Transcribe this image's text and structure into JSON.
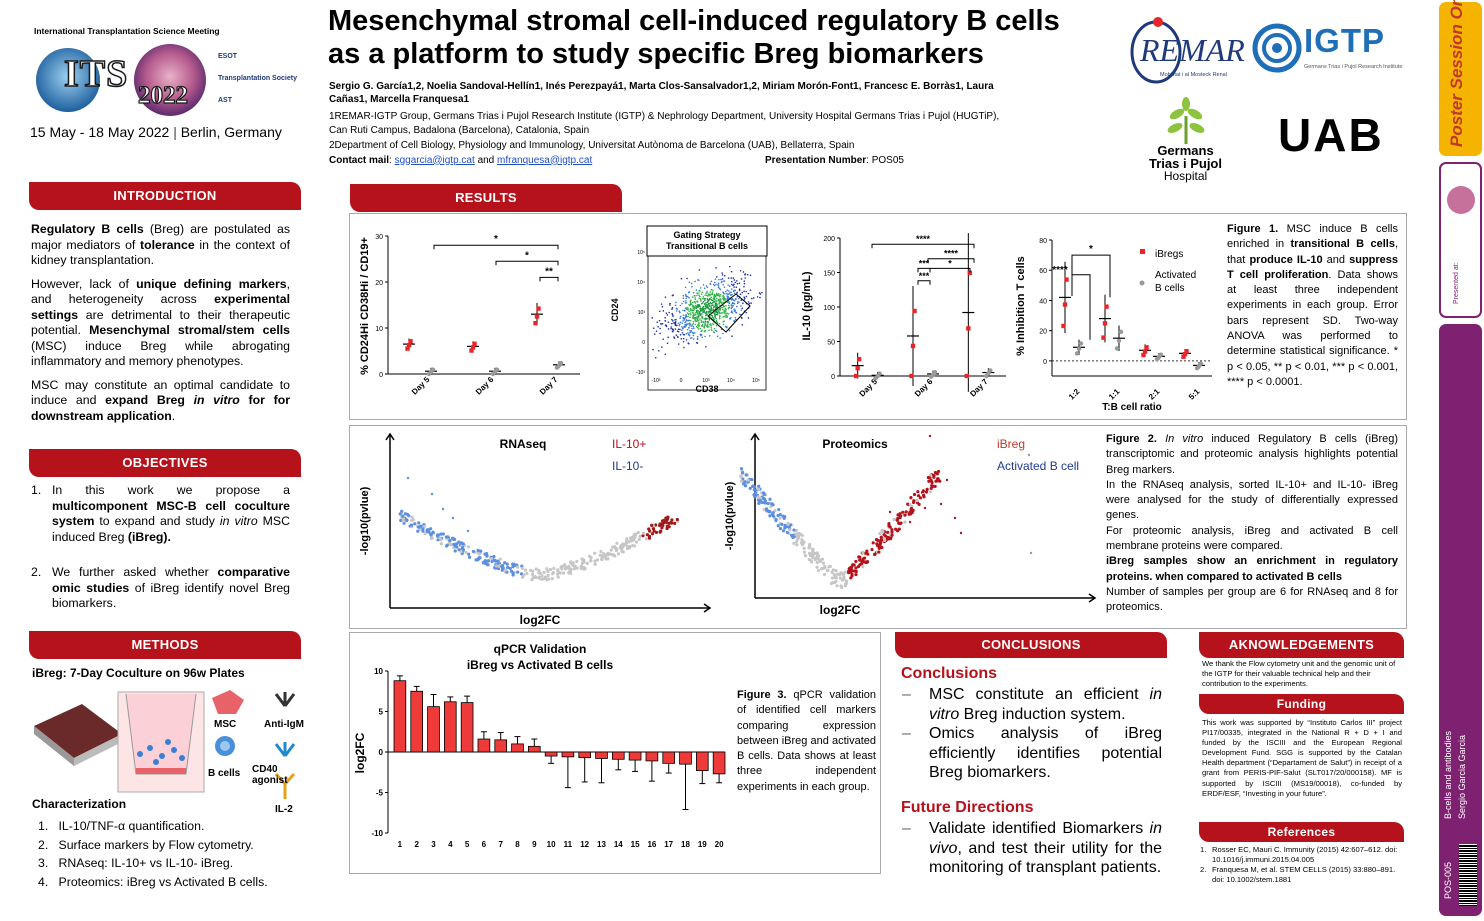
{
  "meeting": {
    "name": "International Transplantation Science Meeting",
    "logo_text": "ITS",
    "logo_year": "2022",
    "partners": [
      "ESOT",
      "Transplantation Society",
      "AST"
    ],
    "dates": "15 May - 18 May 2022",
    "location": "Berlin, Germany"
  },
  "poster": {
    "title_line1": "Mesenchymal stromal cell-induced regulatory B cells",
    "title_line2": "as a platform to study specific Breg biomarkers",
    "authors_line1": "Sergio G. García1,2, Noelia Sandoval-Hellín1, Inés Perezpayá1, Marta Clos-Sansalvador1,2, Miriam Morón-Font1, Francesc E. Borràs1, Laura",
    "authors_line2": "Cañas1, Marcella Franquesa1",
    "affil1_line1": "1REMAR-IGTP Group, Germans Trias i Pujol Research Institute (IGTP) & Nephrology Department, University Hospital Germans Trias i Pujol (HUGTiP),",
    "affil1_line2": "Can Ruti Campus, Badalona (Barcelona), Catalonia, Spain",
    "affil2": "2Department of Cell Biology, Physiology and Immunology, Universitat Autònoma de Barcelona (UAB), Bellaterra, Spain",
    "contact_label": "Contact mail",
    "contact_email1": "sggarcia@igtp.cat",
    "contact_and": "and",
    "contact_email2": "mfranquesa@igtp.cat",
    "presentation_label": "Presentation Number",
    "presentation_number": "POS05"
  },
  "logos": {
    "remar": "REMAR",
    "remar_sub": "Mobilitat i al Mosteck Renal",
    "igtp": "IGTP",
    "igtp_sub": "Germans Trias i Pujol Research Institute",
    "germans_line1": "Germans",
    "germans_line2": "Trias i Pujol",
    "germans_line3": "Hospital",
    "uab": "UAB"
  },
  "side": {
    "poster_session": "Poster Session Online",
    "presented_at": "Presented at:",
    "topic": "B-cells and antibodies",
    "author": "Sergio Garcia Garcia",
    "code": "POS-005"
  },
  "intro": {
    "heading": "INTRODUCTION",
    "p1a": "Regulatory B cells",
    "p1b": " (Breg) are postulated as major mediators of ",
    "p1c": "tolerance",
    "p1d": " in the context of kidney transplantation.",
    "p2a": "However, lack of ",
    "p2b": "unique defining markers",
    "p2c": ", and heterogeneity across ",
    "p2d": "experimental settings",
    "p2e": " are detrimental to their therapeutic potential. ",
    "p2f": "Mesenchymal stromal/stem cells",
    "p2g": " (MSC) induce Breg while abrogating inflammatory and memory phenotypes.",
    "p3a": "MSC may constitute an optimal candidate to induce and ",
    "p3b": "expand Breg ",
    "p3c": "in vitro",
    "p3d": " for downstream application",
    "p3e": "."
  },
  "objectives": {
    "heading": "OBJECTIVES",
    "o1a": "In this work we propose a ",
    "o1b": "multicomponent MSC-B cell coculture system",
    "o1c": " to expand and study ",
    "o1d": "in vitro",
    "o1e": " MSC induced Breg ",
    "o1f": "(iBreg).",
    "o2a": "We further asked whether ",
    "o2b": "comparative omic studies",
    "o2c": " of iBreg identify novel Breg biomarkers."
  },
  "methods": {
    "heading": "METHODS",
    "subtitle": "iBreg: 7-Day Coculture on 96w Plates",
    "msc": "MSC",
    "bcells": "B cells",
    "anti_igm": "Anti-IgM",
    "cd40": "CD40 agonist",
    "il2": "IL-2",
    "char_title": "Characterization",
    "items": [
      "IL-10/TNF-α quantification.",
      "Surface markers by Flow cytometry.",
      "RNAseq: IL-10+ vs IL-10- iBreg.",
      "Proteomics: iBreg vs Activated B cells."
    ]
  },
  "results": {
    "heading": "RESULTS",
    "fig1_caption": {
      "label": "Figure 1.",
      "t1": " MSC induce B cells enriched in ",
      "b1": "transitional B cells",
      "t2": ", that ",
      "b2": "produce IL-10",
      "t3": " and ",
      "b3": "suppress T cell proliferation",
      "t4": ". Data shows at least three independent experiments in each group. Error bars represent SD. Two-way ANOVA was performed to determine statistical significance. * p < 0.05, ** p < 0.01, *** p < 0.001, **** p < 0.0001."
    },
    "fig2_caption": {
      "label": "Figure 2.",
      "i1": "In vitro",
      "t1": " induced Regulatory B cells (iBreg) transcriptomic and proteomic analysis highlights potential Breg markers.",
      "t2": "In the RNAseq analysis, sorted IL-10+ and IL-10- iBreg were analysed for the study of differentially expressed genes.",
      "t3": "For proteomic analysis, iBreg and activated B cell membrane proteins were compared.",
      "b1": "iBreg samples show an enrichment in regulatory proteins. when compared to activated B cells",
      "t4": "Number of samples per group are 6 for RNAseq and 8 for proteomics."
    },
    "fig3_caption": {
      "label": "Figure 3.",
      "t1": " qPCR validation of identified cell markers comparing expression between iBreg and activated B cells. Data shows at least three independent experiments in each group."
    }
  },
  "conclusions": {
    "heading": "CONCLUSIONS",
    "sub1": "Conclusions",
    "c1a": "MSC constitute an efficient ",
    "c1b": "in vitro",
    "c1c": " Breg induction system.",
    "c2": "Omics analysis of iBreg efficiently identifies potential Breg biomarkers.",
    "sub2": "Future Directions",
    "f1a": "Validate identified Biomarkers ",
    "f1b": "in vivo",
    "f1c": ", and test their utility for the monitoring of transplant patients."
  },
  "ack": {
    "heading": "AKNOWLEDGEMENTS",
    "text": "We thank the Flow cytometry unit and the genomic unit of the IGTP for their valuable technical help and their contribution to the experiments.",
    "funding_heading": "Funding",
    "funding_text": "This work was supported by “Instituto Carlos III” project PI17/00335, integrated in the National R + D + I and funded by the ISCIII and the European Regional Development Fund. SGG is supported by the Catalan Health department (“Departament de Salut”) in receipt of a grant from PERIS-PIF-Salut (SLT017/20/000158). MF is supported by ISCIII (MS19/00018), co-funded by ERDF/ESF, “Investing in your future”.",
    "refs_heading": "References",
    "refs": [
      "Rosser EC, Mauri C. Immunity (2015) 42:607–612. doi: 10.1016/j.immuni.2015.04.005",
      "Franquesa M, et al. STEM CELLS (2015) 33:880–891. doi: 10.1002/stem.1881"
    ]
  },
  "chart_data": [
    {
      "type": "scatter",
      "panel": "Fig1A",
      "ylabel": "% CD24Hi CD38Hi / CD19+",
      "categories": [
        "Day 5",
        "Day 6",
        "Day 7"
      ],
      "ylim": [
        0,
        30
      ],
      "yticks": [
        0,
        10,
        20,
        30
      ],
      "series": [
        {
          "name": "iBregs",
          "color": "#e8262a",
          "values": [
            6.5,
            6.0,
            13.0
          ]
        },
        {
          "name": "Activated B cells",
          "color": "#999999",
          "values": [
            0.6,
            0.6,
            2.0
          ]
        }
      ],
      "significance": [
        "*",
        "*",
        "**"
      ]
    },
    {
      "type": "scatter",
      "panel": "Fig1B",
      "title": "Gating Strategy Transitional B cells",
      "xlabel": "CD38",
      "ylabel": "CD24"
    },
    {
      "type": "scatter",
      "panel": "Fig1C",
      "ylabel": "IL-10 (pg/mL)",
      "categories": [
        "Day 5",
        "Day 6",
        "Day 7"
      ],
      "ylim": [
        0,
        200
      ],
      "yticks": [
        0,
        50,
        100,
        150,
        200
      ],
      "series": [
        {
          "name": "iBregs",
          "color": "#e8262a",
          "values": [
            15,
            58,
            92
          ]
        },
        {
          "name": "Activated B cells",
          "color": "#999999",
          "values": [
            1,
            3,
            5
          ]
        }
      ],
      "significance": [
        "****",
        "***",
        "*",
        "***",
        "****"
      ]
    },
    {
      "type": "scatter",
      "panel": "Fig1D",
      "ylabel": "% Inhibition T cells",
      "xlabel": "T:B cell ratio",
      "categories": [
        "1:2",
        "1:1",
        "2:1",
        "5:1"
      ],
      "ylim": [
        -10,
        80
      ],
      "yticks": [
        0,
        20,
        40,
        60,
        80
      ],
      "series": [
        {
          "name": "iBregs",
          "color": "#e8262a",
          "values": [
            42,
            28,
            7,
            5
          ]
        },
        {
          "name": "Activated B cells",
          "color": "#999999",
          "values": [
            9,
            15,
            3,
            -3
          ]
        }
      ],
      "significance": [
        "*",
        "****"
      ]
    },
    {
      "type": "scatter",
      "panel": "Fig2A",
      "title": "RNAseq",
      "xlabel": "log2FC",
      "ylabel": "-log10(pvlue)",
      "series": [
        {
          "name": "IL-10+",
          "color": "#b5121b"
        },
        {
          "name": "IL-10-",
          "color": "#1f3a93"
        }
      ]
    },
    {
      "type": "scatter",
      "panel": "Fig2B",
      "title": "Proteomics",
      "xlabel": "log2FC",
      "ylabel": "-log10(pvlue)",
      "series": [
        {
          "name": "iBreg",
          "color": "#c0392b"
        },
        {
          "name": "Activated B cell",
          "color": "#1f3a93"
        }
      ]
    },
    {
      "type": "bar",
      "panel": "Fig3",
      "title": "qPCR Validation iBreg vs Activated B cells",
      "ylabel": "log2FC",
      "ylim": [
        -10,
        10
      ],
      "yticks": [
        -10,
        -5,
        0,
        5,
        10
      ],
      "categories": [
        "1",
        "2",
        "3",
        "4",
        "5",
        "6",
        "7",
        "8",
        "9",
        "10",
        "11",
        "12",
        "13",
        "14",
        "15",
        "16",
        "17",
        "18",
        "19",
        "20"
      ],
      "values": [
        8.8,
        7.5,
        5.6,
        6.2,
        6.1,
        1.6,
        1.5,
        1.0,
        0.7,
        -0.5,
        -0.6,
        -0.7,
        -0.8,
        -0.9,
        -1.0,
        -1.1,
        -1.4,
        -1.5,
        -2.3,
        -2.7
      ],
      "errors": [
        0.6,
        0.6,
        1.5,
        0.6,
        0.8,
        0.9,
        0.9,
        0.9,
        0.9,
        0.9,
        3.8,
        3.0,
        3.0,
        1.3,
        1.4,
        2.5,
        1.2,
        5.6,
        1.6,
        1.1
      ]
    }
  ]
}
